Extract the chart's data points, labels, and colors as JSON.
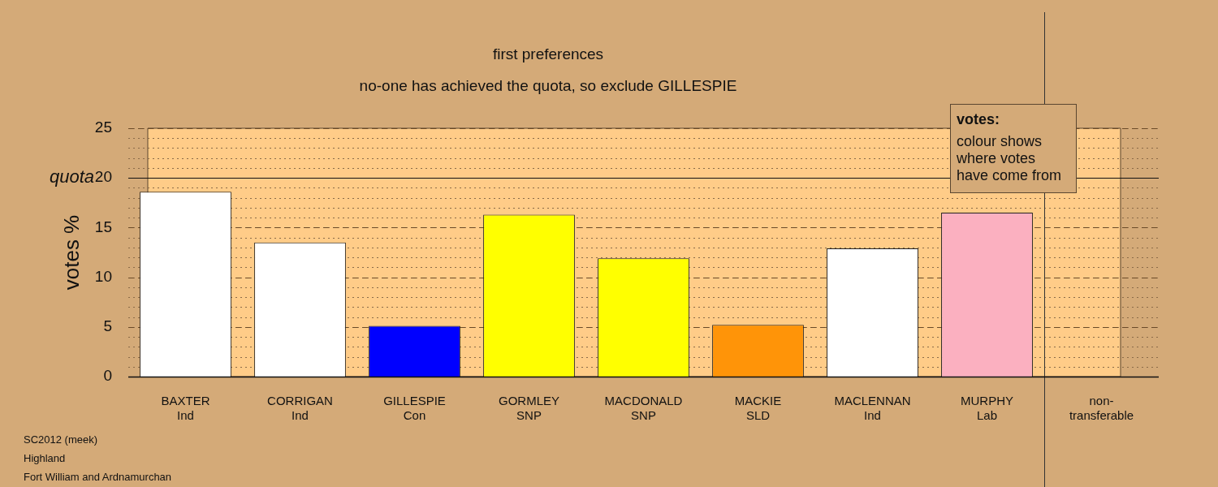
{
  "chart_data": {
    "type": "bar",
    "title": "first preferences",
    "subtitle": "no-one has achieved the quota, so exclude GILLESPIE",
    "ylabel": "votes %",
    "categories": [
      "BAXTER\nInd",
      "CORRIGAN\nInd",
      "GILLESPIE\nCon",
      "GORMLEY\nSNP",
      "MACDONALD\nSNP",
      "MACKIE\nSLD",
      "MACLENNAN\nInd",
      "MURPHY\nLab",
      "non-\ntransferable"
    ],
    "values": [
      18.6,
      13.5,
      5.1,
      16.3,
      11.9,
      5.2,
      12.9,
      16.5,
      0
    ],
    "colors": [
      "#ffffff",
      "#ffffff",
      "#0000ff",
      "#ffff00",
      "#ffff00",
      "#ff9408",
      "#ffffff",
      "#fbb0c0",
      "#ffffff"
    ],
    "ylim": [
      0,
      25
    ],
    "yticks": [
      0,
      5,
      10,
      15,
      20,
      25
    ],
    "grid": "y",
    "legend": false,
    "ref_lines": [
      {
        "axis": "y",
        "value": 20,
        "label": "quota"
      },
      {
        "axis": "x",
        "value": "non-\ntransferable",
        "color": "#333333"
      }
    ],
    "annotations": [
      "votes:",
      "colour shows where votes have come from",
      "SC2012 (meek)",
      "Highland",
      "Fort William and Ardnamurchan"
    ]
  }
}
